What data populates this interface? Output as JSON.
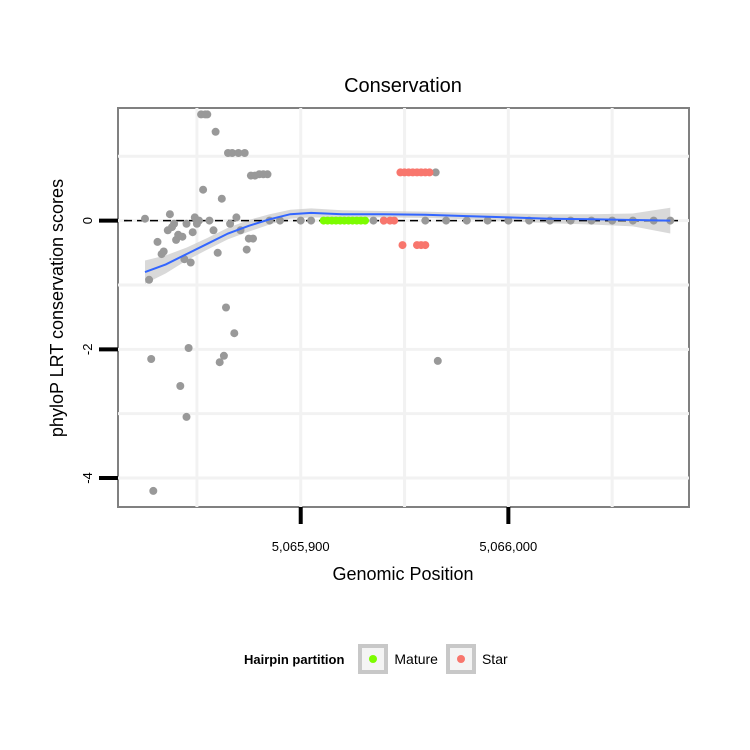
{
  "chart_data": {
    "type": "scatter",
    "title": "Conservation",
    "xlabel": "Genomic Position",
    "ylabel": "phyloP LRT conservation scores",
    "xlim": [
      5065812,
      5066087
    ],
    "ylim": [
      -4.45,
      1.75
    ],
    "x_ticks": [
      5065900,
      5066000
    ],
    "x_tick_labels": [
      "5,065,900",
      "5,066,000"
    ],
    "y_ticks": [
      -4,
      -2,
      0
    ],
    "y_tick_labels": [
      "-4",
      "-2",
      "0"
    ],
    "reference_line": {
      "y": 0,
      "style": "dashed"
    },
    "grid": true,
    "legend_position": "bottom",
    "legend": {
      "title": "Hairpin partition",
      "entries": [
        {
          "label": "Mature",
          "color": "#7cfc00"
        },
        {
          "label": "Star",
          "color": "#f8766d"
        }
      ]
    },
    "series": [
      {
        "group": "other",
        "color": "#999999",
        "points": [
          [
            5065825,
            0.03
          ],
          [
            5065827,
            -0.92
          ],
          [
            5065828,
            -2.15
          ],
          [
            5065829,
            -4.2
          ],
          [
            5065831,
            -0.33
          ],
          [
            5065833,
            -0.52
          ],
          [
            5065834,
            -0.48
          ],
          [
            5065836,
            -0.15
          ],
          [
            5065837,
            0.1
          ],
          [
            5065838,
            -0.1
          ],
          [
            5065839,
            -0.05
          ],
          [
            5065840,
            -0.3
          ],
          [
            5065841,
            -0.22
          ],
          [
            5065842,
            -2.57
          ],
          [
            5065843,
            -0.25
          ],
          [
            5065844,
            -0.6
          ],
          [
            5065845,
            -3.05
          ],
          [
            5065845,
            -0.05
          ],
          [
            5065846,
            -1.98
          ],
          [
            5065847,
            -0.65
          ],
          [
            5065848,
            -0.18
          ],
          [
            5065849,
            0.05
          ],
          [
            5065850,
            -0.05
          ],
          [
            5065851,
            0.0
          ],
          [
            5065852,
            1.65
          ],
          [
            5065853,
            0.48
          ],
          [
            5065854,
            1.65
          ],
          [
            5065855,
            1.65
          ],
          [
            5065856,
            0.0
          ],
          [
            5065858,
            -0.15
          ],
          [
            5065859,
            1.38
          ],
          [
            5065860,
            -0.5
          ],
          [
            5065861,
            -2.2
          ],
          [
            5065862,
            0.34
          ],
          [
            5065863,
            -2.1
          ],
          [
            5065864,
            -1.35
          ],
          [
            5065865,
            1.05
          ],
          [
            5065866,
            -0.05
          ],
          [
            5065867,
            1.05
          ],
          [
            5065868,
            -1.75
          ],
          [
            5065869,
            0.05
          ],
          [
            5065870,
            1.05
          ],
          [
            5065871,
            -0.15
          ],
          [
            5065873,
            1.05
          ],
          [
            5065874,
            -0.45
          ],
          [
            5065875,
            -0.28
          ],
          [
            5065876,
            0.7
          ],
          [
            5065877,
            -0.28
          ],
          [
            5065878,
            0.7
          ],
          [
            5065880,
            0.72
          ],
          [
            5065882,
            0.72
          ],
          [
            5065884,
            0.72
          ],
          [
            5065885,
            0.0
          ],
          [
            5065890,
            0.0
          ],
          [
            5065900,
            0.0
          ],
          [
            5065905,
            0.0
          ],
          [
            5065935,
            0.0
          ],
          [
            5065940,
            0.0
          ],
          [
            5065960,
            0.0
          ],
          [
            5065965,
            0.75
          ],
          [
            5065966,
            -2.18
          ],
          [
            5065970,
            0.0
          ],
          [
            5065980,
            0.0
          ],
          [
            5065990,
            0.0
          ],
          [
            5066000,
            0.0
          ],
          [
            5066010,
            0.0
          ],
          [
            5066020,
            0.0
          ],
          [
            5066030,
            0.0
          ],
          [
            5066040,
            0.0
          ],
          [
            5066050,
            0.0
          ],
          [
            5066060,
            0.0
          ],
          [
            5066070,
            0.0
          ],
          [
            5066078,
            0.0
          ]
        ]
      },
      {
        "name": "Mature",
        "color": "#7cfc00",
        "points": [
          [
            5065911,
            0.0
          ],
          [
            5065913,
            0.0
          ],
          [
            5065915,
            0.0
          ],
          [
            5065917,
            0.0
          ],
          [
            5065919,
            0.0
          ],
          [
            5065921,
            0.0
          ],
          [
            5065923,
            0.0
          ],
          [
            5065925,
            0.0
          ],
          [
            5065927,
            0.0
          ],
          [
            5065929,
            0.0
          ],
          [
            5065931,
            0.0
          ]
        ]
      },
      {
        "name": "Star",
        "color": "#f8766d",
        "points": [
          [
            5065940,
            0.0
          ],
          [
            5065943,
            0.0
          ],
          [
            5065945,
            0.0
          ],
          [
            5065948,
            0.75
          ],
          [
            5065950,
            0.75
          ],
          [
            5065952,
            0.75
          ],
          [
            5065954,
            0.75
          ],
          [
            5065956,
            0.75
          ],
          [
            5065958,
            0.75
          ],
          [
            5065960,
            0.75
          ],
          [
            5065962,
            0.75
          ],
          [
            5065949,
            -0.38
          ],
          [
            5065956,
            -0.38
          ],
          [
            5065958,
            -0.38
          ],
          [
            5065960,
            -0.38
          ]
        ]
      }
    ],
    "smooth": {
      "color": "#3366ff",
      "band_color": "#cccccc",
      "x": [
        5065825,
        5065835,
        5065845,
        5065855,
        5065865,
        5065875,
        5065885,
        5065895,
        5065905,
        5065920,
        5065940,
        5065960,
        5065980,
        5066000,
        5066020,
        5066040,
        5066060,
        5066078
      ],
      "y": [
        -0.8,
        -0.68,
        -0.52,
        -0.36,
        -0.2,
        -0.08,
        0.02,
        0.1,
        0.12,
        0.1,
        0.1,
        0.09,
        0.07,
        0.05,
        0.03,
        0.02,
        0.01,
        0.0
      ],
      "lower": [
        -0.98,
        -0.82,
        -0.62,
        -0.45,
        -0.29,
        -0.17,
        -0.06,
        0.03,
        0.05,
        0.04,
        0.05,
        0.04,
        0.02,
        -0.01,
        -0.04,
        -0.06,
        -0.09,
        -0.2
      ],
      "upper": [
        -0.62,
        -0.54,
        -0.42,
        -0.27,
        -0.11,
        0.01,
        0.1,
        0.17,
        0.19,
        0.16,
        0.15,
        0.14,
        0.12,
        0.11,
        0.1,
        0.1,
        0.11,
        0.2
      ]
    }
  }
}
